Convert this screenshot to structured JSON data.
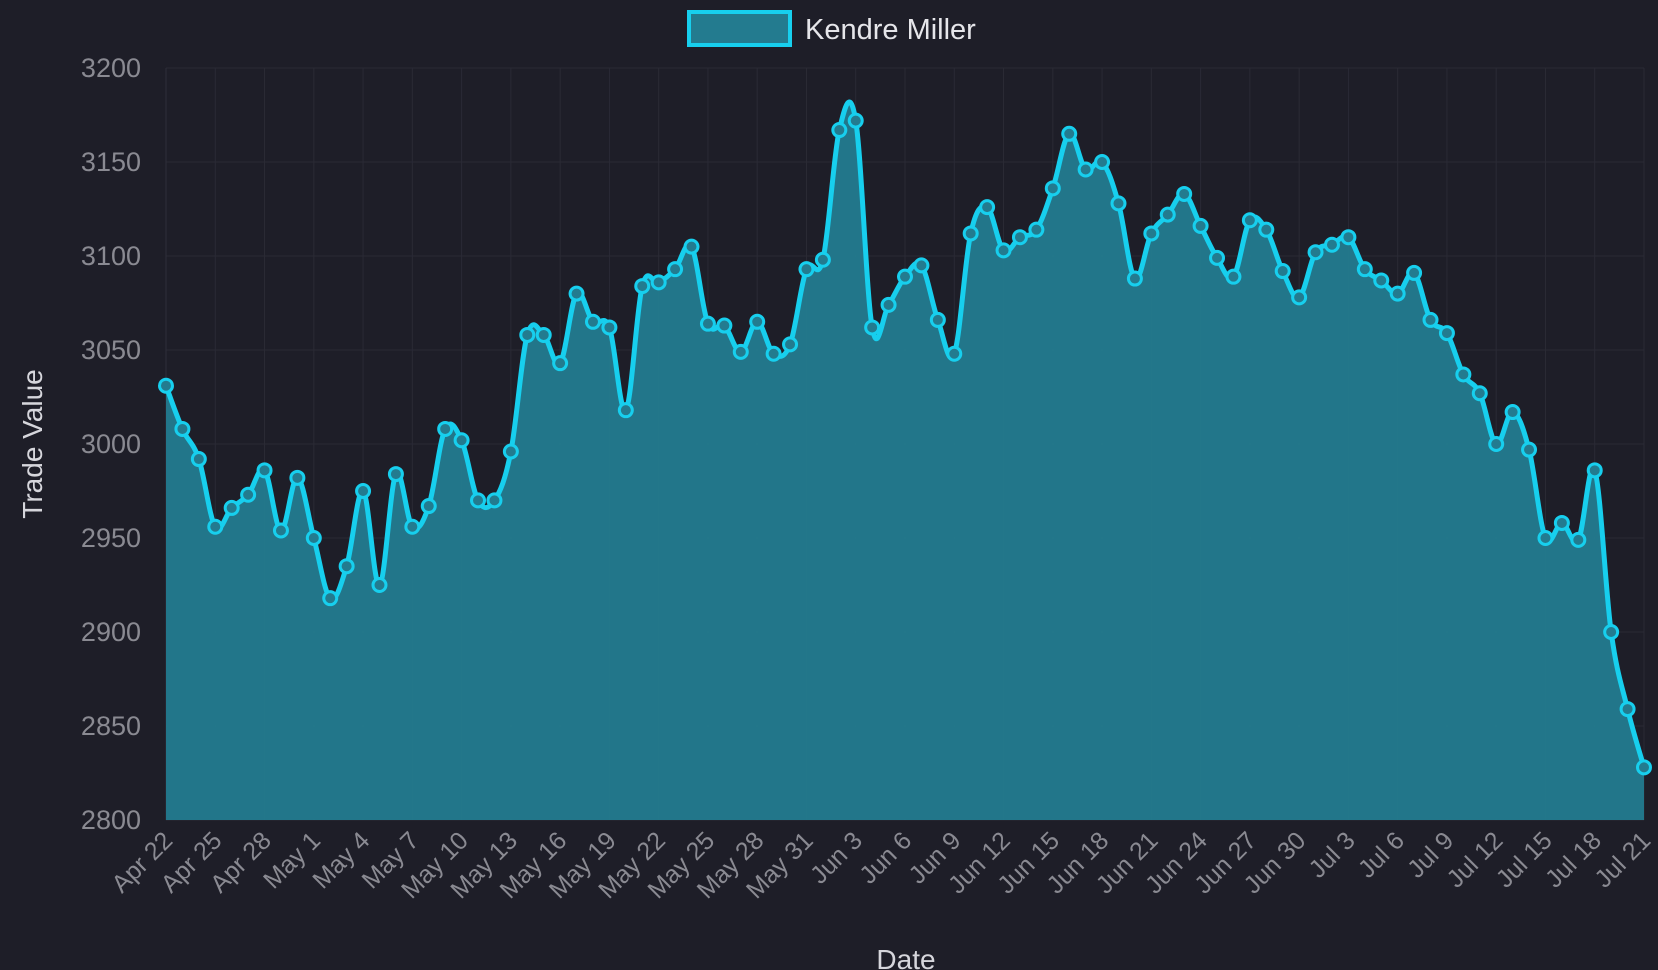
{
  "chart_data": {
    "type": "area",
    "x": [
      "2024-04-22",
      "2024-04-23",
      "2024-04-24",
      "2024-04-25",
      "2024-04-26",
      "2024-04-27",
      "2024-04-28",
      "2024-04-29",
      "2024-04-30",
      "2024-05-01",
      "2024-05-02",
      "2024-05-03",
      "2024-05-04",
      "2024-05-05",
      "2024-05-06",
      "2024-05-07",
      "2024-05-08",
      "2024-05-09",
      "2024-05-10",
      "2024-05-11",
      "2024-05-12",
      "2024-05-13",
      "2024-05-14",
      "2024-05-15",
      "2024-05-16",
      "2024-05-17",
      "2024-05-18",
      "2024-05-19",
      "2024-05-20",
      "2024-05-21",
      "2024-05-22",
      "2024-05-23",
      "2024-05-24",
      "2024-05-25",
      "2024-05-26",
      "2024-05-27",
      "2024-05-28",
      "2024-05-29",
      "2024-05-30",
      "2024-05-31",
      "2024-06-01",
      "2024-06-02",
      "2024-06-03",
      "2024-06-04",
      "2024-06-05",
      "2024-06-06",
      "2024-06-07",
      "2024-06-08",
      "2024-06-09",
      "2024-06-10",
      "2024-06-11",
      "2024-06-12",
      "2024-06-13",
      "2024-06-14",
      "2024-06-15",
      "2024-06-16",
      "2024-06-17",
      "2024-06-18",
      "2024-06-19",
      "2024-06-20",
      "2024-06-21",
      "2024-06-22",
      "2024-06-23",
      "2024-06-24",
      "2024-06-25",
      "2024-06-26",
      "2024-06-27",
      "2024-06-28",
      "2024-06-29",
      "2024-06-30",
      "2024-07-01",
      "2024-07-02",
      "2024-07-03",
      "2024-07-04",
      "2024-07-05",
      "2024-07-06",
      "2024-07-07",
      "2024-07-08",
      "2024-07-09",
      "2024-07-10",
      "2024-07-11",
      "2024-07-12",
      "2024-07-13",
      "2024-07-14",
      "2024-07-15",
      "2024-07-16",
      "2024-07-17",
      "2024-07-18",
      "2024-07-19",
      "2024-07-20",
      "2024-07-21"
    ],
    "series": [
      {
        "name": "Kendre Miller",
        "values": [
          3031,
          3008,
          2992,
          2956,
          2966,
          2973,
          2986,
          2954,
          2982,
          2950,
          2918,
          2935,
          2975,
          2925,
          2984,
          2956,
          2967,
          3008,
          3002,
          2970,
          2970,
          2996,
          3058,
          3058,
          3043,
          3080,
          3065,
          3062,
          3018,
          3084,
          3086,
          3093,
          3105,
          3064,
          3063,
          3049,
          3065,
          3048,
          3053,
          3093,
          3098,
          3167,
          3172,
          3062,
          3074,
          3089,
          3095,
          3066,
          3048,
          3112,
          3126,
          3103,
          3110,
          3114,
          3136,
          3165,
          3146,
          3150,
          3128,
          3088,
          3112,
          3122,
          3133,
          3116,
          3099,
          3089,
          3119,
          3114,
          3092,
          3078,
          3102,
          3106,
          3110,
          3093,
          3087,
          3080,
          3091,
          3066,
          3059,
          3037,
          3027,
          3000,
          3017,
          2997,
          2950,
          2958,
          2949,
          2986,
          2900,
          2859,
          2828
        ]
      }
    ],
    "tick_labels": [
      "Apr 22",
      "Apr 25",
      "Apr 28",
      "May 1",
      "May 4",
      "May 7",
      "May 10",
      "May 13",
      "May 16",
      "May 19",
      "May 22",
      "May 25",
      "May 28",
      "May 31",
      "Jun 3",
      "Jun 6",
      "Jun 9",
      "Jun 12",
      "Jun 15",
      "Jun 18",
      "Jun 21",
      "Jun 24",
      "Jun 27",
      "Jun 30",
      "Jul 3",
      "Jul 6",
      "Jul 9",
      "Jul 12",
      "Jul 15",
      "Jul 18",
      "Jul 21"
    ],
    "y_ticks": [
      "2800",
      "2850",
      "2900",
      "2950",
      "3000",
      "3050",
      "3100",
      "3150",
      "3200"
    ],
    "xlabel": "Date",
    "ylabel": "Trade Value",
    "ylim": [
      2800,
      3200
    ],
    "grid": true,
    "legend_position": "top-center",
    "colors": {
      "background": "#1e1e28",
      "line": "#17cfee",
      "fill": "#237b8f",
      "grid": "#2a2a35"
    }
  }
}
